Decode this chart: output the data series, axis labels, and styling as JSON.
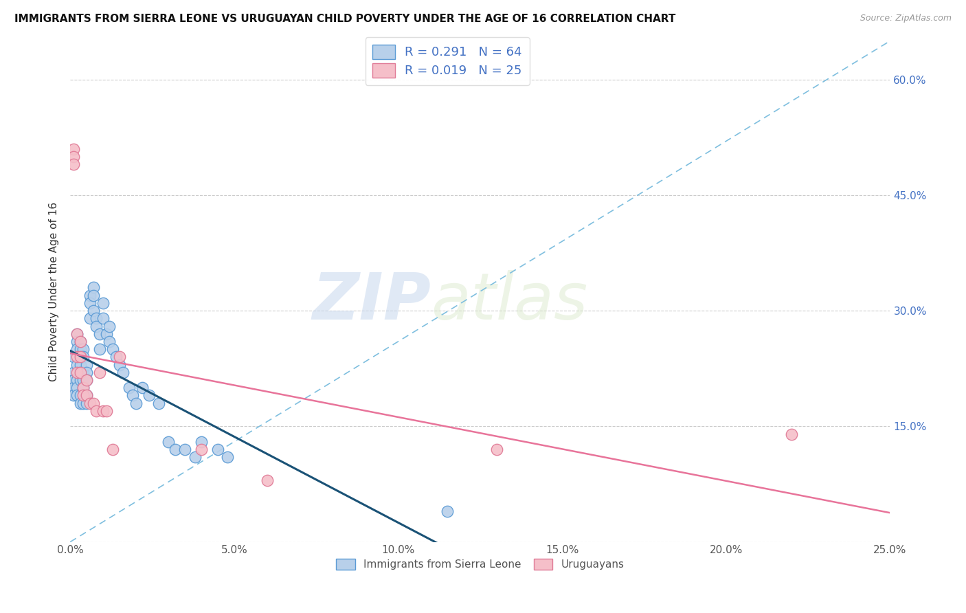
{
  "title": "IMMIGRANTS FROM SIERRA LEONE VS URUGUAYAN CHILD POVERTY UNDER THE AGE OF 16 CORRELATION CHART",
  "source": "Source: ZipAtlas.com",
  "ylabel": "Child Poverty Under the Age of 16",
  "xlim": [
    0.0,
    0.25
  ],
  "ylim": [
    0.0,
    0.65
  ],
  "xticks": [
    0.0,
    0.05,
    0.1,
    0.15,
    0.2,
    0.25
  ],
  "yticks": [
    0.0,
    0.15,
    0.3,
    0.45,
    0.6
  ],
  "xtick_labels": [
    "0.0%",
    "5.0%",
    "10.0%",
    "15.0%",
    "20.0%",
    "25.0%"
  ],
  "ytick_labels_right": [
    "",
    "15.0%",
    "30.0%",
    "45.0%",
    "60.0%"
  ],
  "blue_fill": "#b8d0ea",
  "blue_edge": "#5b9bd5",
  "pink_fill": "#f5bfc9",
  "pink_edge": "#e07a96",
  "blue_line_color": "#1a5276",
  "pink_line_color": "#e8749a",
  "diag_line_color": "#7fbfdf",
  "R_blue": 0.291,
  "N_blue": 64,
  "R_pink": 0.019,
  "N_pink": 25,
  "legend_label_blue": "Immigrants from Sierra Leone",
  "legend_label_pink": "Uruguayans",
  "watermark_zip": "ZIP",
  "watermark_atlas": "atlas",
  "blue_x": [
    0.001,
    0.001,
    0.001,
    0.001,
    0.001,
    0.002,
    0.002,
    0.002,
    0.002,
    0.002,
    0.002,
    0.002,
    0.003,
    0.003,
    0.003,
    0.003,
    0.003,
    0.003,
    0.003,
    0.003,
    0.004,
    0.004,
    0.004,
    0.004,
    0.004,
    0.004,
    0.005,
    0.005,
    0.005,
    0.005,
    0.005,
    0.006,
    0.006,
    0.006,
    0.007,
    0.007,
    0.007,
    0.008,
    0.008,
    0.009,
    0.009,
    0.01,
    0.01,
    0.011,
    0.012,
    0.012,
    0.013,
    0.014,
    0.015,
    0.016,
    0.018,
    0.019,
    0.02,
    0.022,
    0.024,
    0.027,
    0.03,
    0.032,
    0.035,
    0.038,
    0.04,
    0.045,
    0.048,
    0.115
  ],
  "blue_y": [
    0.24,
    0.22,
    0.21,
    0.2,
    0.19,
    0.27,
    0.26,
    0.25,
    0.23,
    0.21,
    0.2,
    0.19,
    0.26,
    0.25,
    0.24,
    0.23,
    0.22,
    0.21,
    0.19,
    0.18,
    0.25,
    0.24,
    0.22,
    0.21,
    0.2,
    0.18,
    0.23,
    0.22,
    0.21,
    0.19,
    0.18,
    0.32,
    0.31,
    0.29,
    0.33,
    0.32,
    0.3,
    0.29,
    0.28,
    0.27,
    0.25,
    0.31,
    0.29,
    0.27,
    0.28,
    0.26,
    0.25,
    0.24,
    0.23,
    0.22,
    0.2,
    0.19,
    0.18,
    0.2,
    0.19,
    0.18,
    0.13,
    0.12,
    0.12,
    0.11,
    0.13,
    0.12,
    0.11,
    0.04
  ],
  "pink_x": [
    0.001,
    0.001,
    0.001,
    0.002,
    0.002,
    0.002,
    0.003,
    0.003,
    0.003,
    0.004,
    0.004,
    0.005,
    0.005,
    0.006,
    0.007,
    0.008,
    0.009,
    0.01,
    0.011,
    0.013,
    0.015,
    0.04,
    0.06,
    0.13,
    0.22
  ],
  "pink_y": [
    0.51,
    0.5,
    0.49,
    0.27,
    0.24,
    0.22,
    0.26,
    0.24,
    0.22,
    0.2,
    0.19,
    0.21,
    0.19,
    0.18,
    0.18,
    0.17,
    0.22,
    0.17,
    0.17,
    0.12,
    0.24,
    0.12,
    0.08,
    0.12,
    0.14
  ],
  "figsize": [
    14.06,
    8.92
  ],
  "dpi": 100
}
